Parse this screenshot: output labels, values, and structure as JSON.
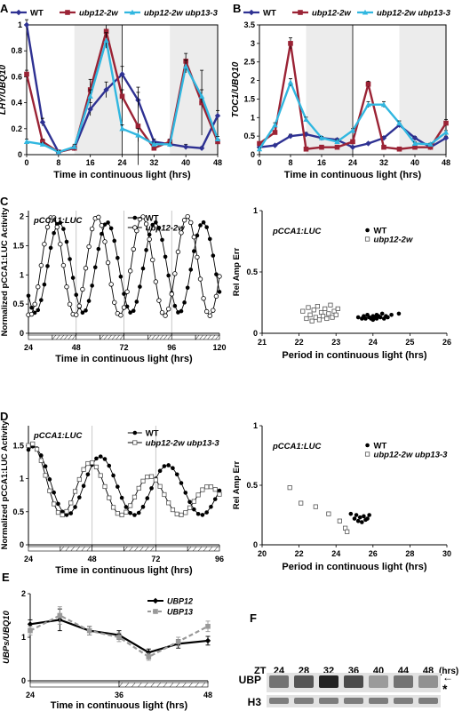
{
  "chart_data": [
    {
      "id": "A",
      "panel_label": "A",
      "type": "line",
      "xlabel": "Time in continuous light (hrs)",
      "ylabel": "LHY/UBQ10",
      "xlim": [
        0,
        48
      ],
      "ylim": [
        0,
        1
      ],
      "xticks": [
        0,
        8,
        16,
        24,
        32,
        40,
        48
      ],
      "yticks": [
        0,
        0.2,
        0.4,
        0.6,
        0.8,
        1
      ],
      "shading": [
        [
          12,
          24
        ],
        [
          36,
          48
        ]
      ],
      "vlines": [
        24
      ],
      "legend": "top",
      "x": [
        0,
        4,
        8,
        12,
        16,
        20,
        24,
        28,
        32,
        36,
        40,
        44,
        48
      ],
      "series": [
        {
          "name": "WT",
          "color": "#2e3192",
          "marker": "diamond",
          "values": [
            1.0,
            0.25,
            0.02,
            0.05,
            0.35,
            0.5,
            0.62,
            0.42,
            0.1,
            0.08,
            0.06,
            0.05,
            0.3
          ],
          "errors": [
            0.04,
            0.03,
            0.01,
            0.02,
            0.05,
            0.06,
            0.06,
            0.06,
            0.02,
            0.01,
            0.02,
            0.01,
            0.04
          ]
        },
        {
          "name": "ubp12-2w",
          "color": "#9b2335",
          "marker": "square",
          "values": [
            0.62,
            0.1,
            0.02,
            0.05,
            0.5,
            0.95,
            0.45,
            0.22,
            0.05,
            0.1,
            0.72,
            0.4,
            0.1
          ],
          "errors": [
            0.03,
            0.02,
            0.01,
            0.01,
            0.08,
            0.05,
            0.05,
            0.3,
            0.01,
            0.02,
            0.06,
            0.25,
            0.02
          ]
        },
        {
          "name": "ubp12-2w ubp13-3",
          "color": "#31b7e0",
          "marker": "triangle",
          "values": [
            0.1,
            0.08,
            0.02,
            0.06,
            0.45,
            0.88,
            0.2,
            0.15,
            0.08,
            0.08,
            0.68,
            0.45,
            0.12
          ],
          "errors": [
            0.02,
            0.01,
            0.01,
            0.02,
            0.05,
            0.06,
            0.03,
            0.05,
            0.01,
            0.01,
            0.05,
            0.05,
            0.02
          ]
        }
      ]
    },
    {
      "id": "B",
      "panel_label": "B",
      "type": "line",
      "xlabel": "Time in continuous light (hrs)",
      "ylabel": "TOC1/UBQ10",
      "xlim": [
        0,
        48
      ],
      "ylim": [
        0,
        3.5
      ],
      "xticks": [
        0,
        8,
        16,
        24,
        32,
        40,
        48
      ],
      "yticks": [
        0,
        0.5,
        1,
        1.5,
        2,
        2.5,
        3,
        3.5
      ],
      "shading": [
        [
          12,
          24
        ],
        [
          36,
          48
        ]
      ],
      "vlines": [
        24
      ],
      "legend": "top",
      "x": [
        0,
        4,
        8,
        12,
        16,
        20,
        24,
        28,
        32,
        36,
        40,
        44,
        48
      ],
      "series": [
        {
          "name": "WT",
          "color": "#2e3192",
          "marker": "diamond",
          "values": [
            0.2,
            0.25,
            0.5,
            0.55,
            0.45,
            0.4,
            0.2,
            0.3,
            0.45,
            0.8,
            0.45,
            0.2,
            0.45
          ],
          "errors": [
            0.03,
            0.03,
            0.05,
            0.05,
            0.04,
            0.04,
            0.03,
            0.03,
            0.04,
            0.05,
            0.04,
            0.03,
            0.05
          ]
        },
        {
          "name": "ubp12-2w",
          "color": "#9b2335",
          "marker": "square",
          "values": [
            0.3,
            0.6,
            3.0,
            0.15,
            0.2,
            0.2,
            0.35,
            1.9,
            0.2,
            0.15,
            0.2,
            0.2,
            0.85
          ],
          "errors": [
            0.03,
            0.05,
            0.15,
            0.02,
            0.02,
            0.02,
            0.04,
            0.08,
            0.02,
            0.02,
            0.02,
            0.02,
            0.1
          ]
        },
        {
          "name": "ubp12-2w ubp13-3",
          "color": "#31b7e0",
          "marker": "triangle",
          "values": [
            0.15,
            0.8,
            1.95,
            0.95,
            0.45,
            0.35,
            0.65,
            1.35,
            1.35,
            0.85,
            0.3,
            0.28,
            0.6
          ],
          "errors": [
            0.03,
            0.06,
            0.1,
            0.06,
            0.04,
            0.04,
            0.05,
            0.08,
            0.08,
            0.06,
            0.04,
            0.03,
            0.05
          ]
        }
      ]
    },
    {
      "id": "C1",
      "panel_label": "C",
      "type": "line",
      "annotation": "pCCA1:LUC",
      "xlabel": "Time in continuous light (hrs)",
      "ylabel": "Normalized pCCA1:LUC Activity",
      "xlim": [
        24,
        120
      ],
      "ylim": [
        0,
        2.1
      ],
      "xticks": [
        24,
        48,
        72,
        96,
        120
      ],
      "yticks": [
        0,
        0.5,
        1,
        1.5,
        2
      ],
      "vlines": [
        48,
        72,
        96
      ],
      "legend": "top-right",
      "series": [
        {
          "name": "WT",
          "color": "#000000",
          "marker": "filled-circle",
          "period": 24.1,
          "peak": 39.5,
          "min": 0.35,
          "max": 1.9
        },
        {
          "name": "ubp12-2w",
          "color": "#000000",
          "marker": "open-circle",
          "period": 22.6,
          "peak": 36.0,
          "min": 0.3,
          "max": 2.0
        }
      ]
    },
    {
      "id": "C2",
      "type": "scatter",
      "annotation": "pCCA1:LUC",
      "xlabel": "Period in continuous light (hrs)",
      "ylabel": "Rel Amp Err",
      "xlim": [
        21,
        26
      ],
      "ylim": [
        0,
        1
      ],
      "xticks": [
        21,
        22,
        23,
        24,
        25,
        26
      ],
      "yticks": [
        0,
        0.5,
        1
      ],
      "legend": "top-right",
      "series": [
        {
          "name": "WT",
          "marker": "filled-circle",
          "x": [
            23.6,
            23.7,
            23.75,
            23.8,
            23.85,
            23.9,
            23.95,
            24.0,
            24.0,
            24.05,
            24.1,
            24.1,
            24.15,
            24.2,
            24.25,
            24.3,
            24.35,
            24.4,
            24.5,
            24.7
          ],
          "y": [
            0.13,
            0.12,
            0.14,
            0.12,
            0.15,
            0.13,
            0.12,
            0.14,
            0.11,
            0.13,
            0.15,
            0.12,
            0.14,
            0.13,
            0.16,
            0.12,
            0.14,
            0.13,
            0.15,
            0.16
          ]
        },
        {
          "name": "ubp12-2w",
          "marker": "open-square",
          "x": [
            22.1,
            22.2,
            22.25,
            22.3,
            22.35,
            22.4,
            22.45,
            22.5,
            22.55,
            22.6,
            22.65,
            22.7,
            22.75,
            22.8,
            22.85,
            22.9,
            22.95,
            23.0,
            23.05
          ],
          "y": [
            0.18,
            0.12,
            0.21,
            0.15,
            0.1,
            0.19,
            0.13,
            0.22,
            0.11,
            0.17,
            0.14,
            0.2,
            0.12,
            0.16,
            0.23,
            0.13,
            0.18,
            0.15,
            0.2
          ]
        }
      ]
    },
    {
      "id": "D1",
      "panel_label": "D",
      "type": "line",
      "annotation": "pCCA1:LUC",
      "xlabel": "Time in continuous light (hrs)",
      "ylabel": "Normalized pCCA1:LUC Activity",
      "xlim": [
        24,
        96
      ],
      "ylim": [
        0,
        1.8
      ],
      "xticks": [
        24,
        48,
        72,
        96
      ],
      "yticks": [
        0,
        0.5,
        1,
        1.5
      ],
      "vlines": [
        48,
        72
      ],
      "legend": "top-right",
      "series": [
        {
          "name": "WT",
          "color": "#000000",
          "marker": "filled-circle",
          "period": 25.3,
          "peak": 26.0,
          "min": 0.45,
          "max": 1.5,
          "decay": 0.86
        },
        {
          "name": "ubp12-2w ubp13-3",
          "color": "#000000",
          "marker": "open-square",
          "period": 22.3,
          "peak": 25.5,
          "min": 0.45,
          "max": 1.55,
          "decay": 0.72
        }
      ]
    },
    {
      "id": "D2",
      "type": "scatter",
      "annotation": "pCCA1:LUC",
      "xlabel": "Period in continuous light (hrs)",
      "ylabel": "Rel Amp Err",
      "xlim": [
        20,
        30
      ],
      "ylim": [
        0,
        1
      ],
      "xticks": [
        20,
        22,
        24,
        26,
        28,
        30
      ],
      "yticks": [
        0,
        0.5,
        1
      ],
      "legend": "top-right",
      "series": [
        {
          "name": "WT",
          "marker": "filled-circle",
          "x": [
            24.8,
            25.0,
            25.1,
            25.2,
            25.3,
            25.4,
            25.5,
            25.6,
            25.7,
            25.8
          ],
          "y": [
            0.26,
            0.22,
            0.25,
            0.2,
            0.23,
            0.19,
            0.24,
            0.21,
            0.22,
            0.25
          ]
        },
        {
          "name": "ubp12-2w ubp13-3",
          "marker": "open-square",
          "x": [
            21.5,
            22.1,
            22.9,
            23.6,
            24.2,
            24.5,
            24.6
          ],
          "y": [
            0.48,
            0.35,
            0.32,
            0.26,
            0.2,
            0.14,
            0.11
          ]
        }
      ]
    },
    {
      "id": "E",
      "panel_label": "E",
      "type": "line",
      "xlabel": "Time in continuous light (hrs)",
      "ylabel": "UBPs/UBQ10",
      "xlim": [
        24,
        48
      ],
      "ylim": [
        0,
        2
      ],
      "xticks": [
        24,
        36,
        48
      ],
      "yticks": [
        0,
        1,
        2
      ],
      "legend": "top-right",
      "x": [
        24,
        28,
        32,
        36,
        40,
        44,
        48
      ],
      "series": [
        {
          "name": "UBP12",
          "color": "#000000",
          "marker": "diamond",
          "values": [
            1.3,
            1.4,
            1.15,
            1.05,
            0.65,
            0.85,
            0.92
          ],
          "errors": [
            0.1,
            0.25,
            0.1,
            0.1,
            0.08,
            0.1,
            0.1
          ]
        },
        {
          "name": "UBP13",
          "color": "#999999",
          "marker": "square",
          "dashed": true,
          "values": [
            1.15,
            1.5,
            1.15,
            1.0,
            0.55,
            0.9,
            1.25
          ],
          "errors": [
            0.1,
            0.2,
            0.1,
            0.1,
            0.08,
            0.1,
            0.12
          ]
        }
      ]
    }
  ],
  "blot": {
    "panel_label": "F",
    "zt_label": "ZT",
    "times": [
      "24",
      "28",
      "32",
      "36",
      "40",
      "44",
      "48"
    ],
    "unit": "(hrs)",
    "rows": [
      {
        "label": "UBP",
        "intensity": [
          0.55,
          0.7,
          0.95,
          0.75,
          0.35,
          0.55,
          0.4
        ]
      },
      {
        "label": "H3",
        "intensity": [
          0.5,
          0.5,
          0.5,
          0.5,
          0.5,
          0.5,
          0.5
        ]
      }
    ],
    "arrow": "←",
    "asterisk": "*"
  }
}
